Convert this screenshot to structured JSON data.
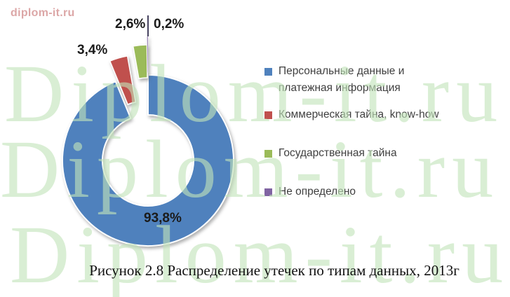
{
  "chart_data": {
    "type": "pie",
    "subtype": "donut-exploded",
    "title": "",
    "categories": [
      "Персональные данные и платежная информация",
      "Коммерческая тайна, know-how",
      "Государственная тайна",
      "Не определено"
    ],
    "values": [
      93.8,
      3.4,
      2.6,
      0.2
    ],
    "value_labels": [
      "93,8%",
      "3,4%",
      "2,6%",
      "0,2%"
    ],
    "colors": [
      "#4F81BD",
      "#C0504D",
      "#9BBB59",
      "#8064A2"
    ],
    "units": "%",
    "legend_position": "right",
    "start_angle_deg": 0,
    "exploded": [
      false,
      true,
      true,
      true
    ],
    "slice_border_color": "#ffffff"
  },
  "caption": "Рисунок 2.8 Распределение утечек по типам данных, 2013г",
  "watermark": {
    "site_link": "diplom-it.ru",
    "rows": [
      "Diplom-it.ru",
      "Diplom-it.ru",
      "Diplom-it.ru"
    ],
    "color": "rgba(193,228,186,0.62)",
    "link_color": "#dca7a7"
  }
}
